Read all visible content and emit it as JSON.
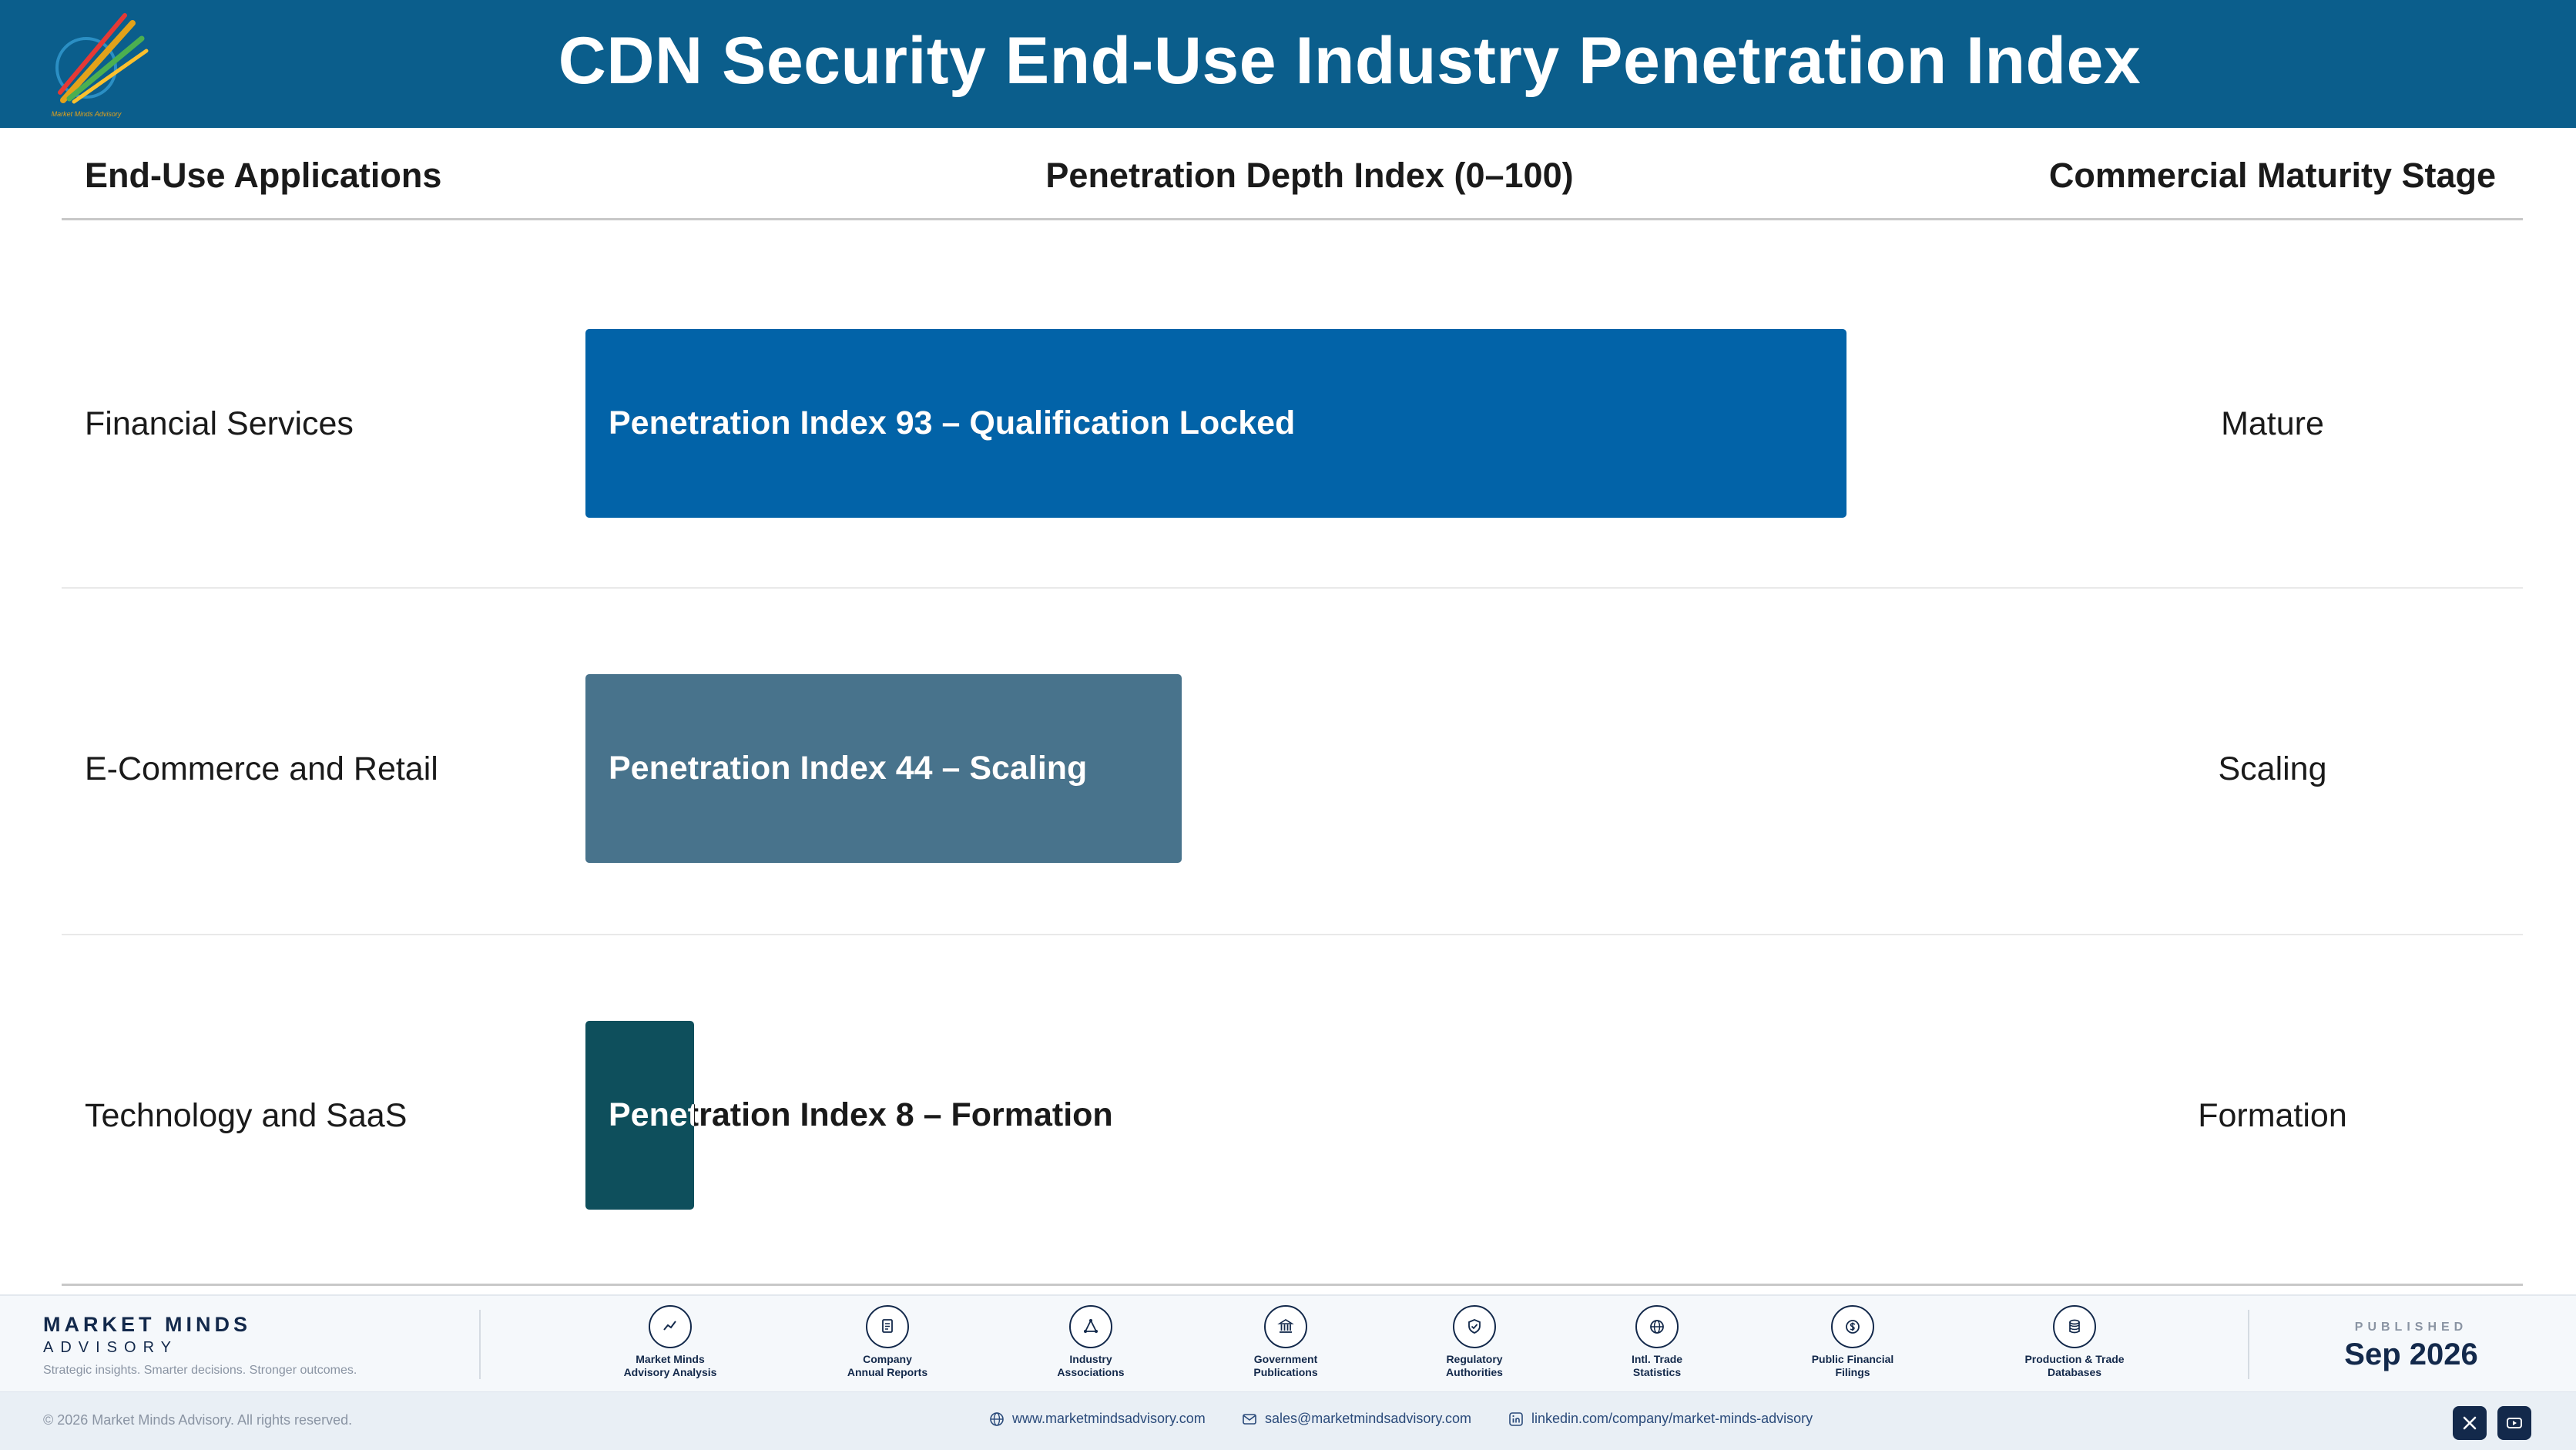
{
  "header": {
    "title": "CDN Security End-Use Industry Penetration Index",
    "logo_caption": "Market Minds Advisory"
  },
  "columns": {
    "applications": "End-Use Applications",
    "index": "Penetration Depth Index (0–100)",
    "stage": "Commercial Maturity Stage"
  },
  "colors": {
    "header_bg": "#0b5e8c",
    "mature": "#0263a8",
    "scaling": "#48738c",
    "formation": "#0e4f5c"
  },
  "chart_data": {
    "type": "bar",
    "orientation": "horizontal",
    "title": "CDN Security End-Use Industry Penetration Index",
    "xlabel": "Penetration Depth Index (0–100)",
    "xlim": [
      0,
      100
    ],
    "categories": [
      "Financial Services",
      "E-Commerce and Retail",
      "Technology and SaaS"
    ],
    "values": [
      93,
      44,
      8
    ],
    "bar_labels": [
      "Penetration Index 93 – Qualification Locked",
      "Penetration Index 44 – Scaling",
      "Penetration Index 8 – Formation"
    ],
    "stages": [
      "Mature",
      "Scaling",
      "Formation"
    ],
    "bar_colors": [
      "#0263a8",
      "#48738c",
      "#0e4f5c"
    ]
  },
  "footer": {
    "brand_name": "MARKET MINDS",
    "brand_sub": "ADVISORY",
    "tagline": "Strategic insights. Smarter decisions. Stronger outcomes.",
    "sources": [
      {
        "label": "Market Minds\nAdvisory Analysis",
        "icon": "chart-line-icon"
      },
      {
        "label": "Company\nAnnual Reports",
        "icon": "document-icon"
      },
      {
        "label": "Industry\nAssociations",
        "icon": "network-icon"
      },
      {
        "label": "Government\nPublications",
        "icon": "government-building-icon"
      },
      {
        "label": "Regulatory\nAuthorities",
        "icon": "shield-check-icon"
      },
      {
        "label": "Intl. Trade\nStatistics",
        "icon": "globe-icon"
      },
      {
        "label": "Public Financial\nFilings",
        "icon": "dollar-coin-icon"
      },
      {
        "label": "Production & Trade\nDatabases",
        "icon": "database-icon"
      }
    ],
    "published_label": "PUBLISHED",
    "published_date": "Sep 2026",
    "copyright": "© 2026 Market Minds Advisory. All rights reserved.",
    "website": "www.marketmindsadvisory.com",
    "email": "sales@marketmindsadvisory.com",
    "linkedin": "linkedin.com/company/market-minds-advisory"
  }
}
